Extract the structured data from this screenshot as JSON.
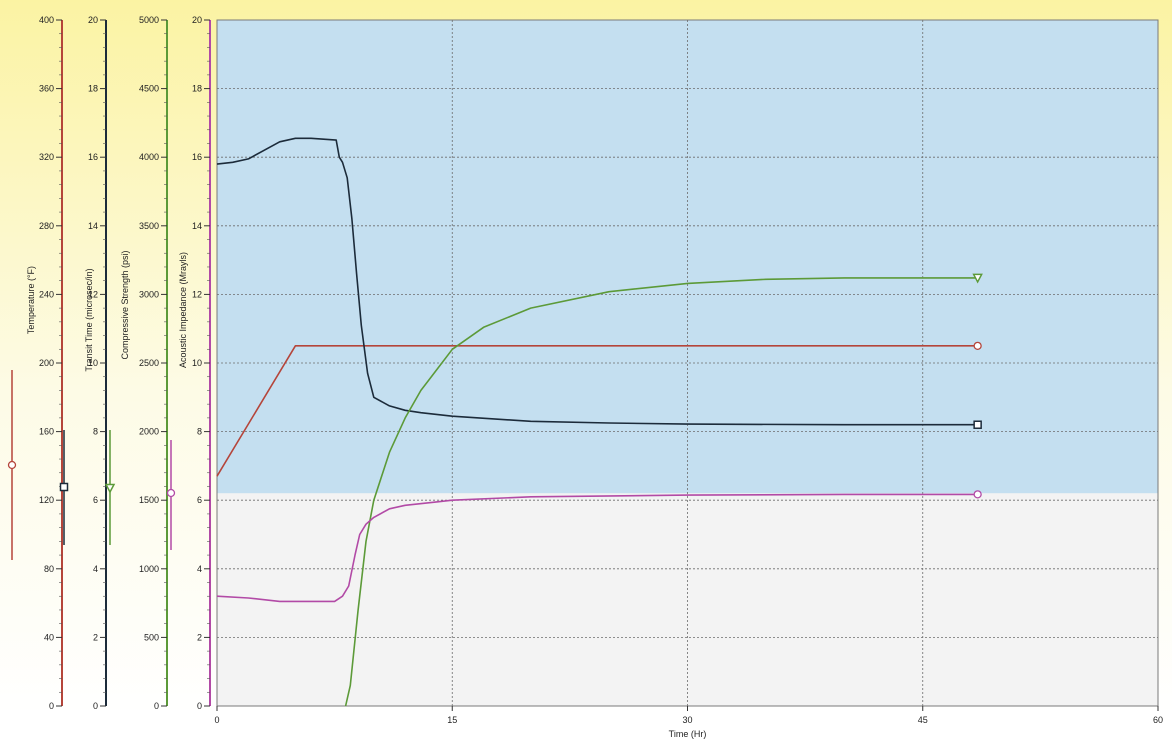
{
  "colors": {
    "background_top": "#fbf3a3",
    "plot_upper": "#c4dff0",
    "plot_lower": "#f3f3f3",
    "gridline": "#6c6c6c",
    "temperature": "#b5453a",
    "transit_time": "#1c2b3a",
    "compressive_strength": "#5c9a38",
    "acoustic_impedance": "#b24aa6"
  },
  "chart_data": {
    "type": "line",
    "title": "",
    "xlabel": "Time (Hr)",
    "xlim": [
      0,
      60
    ],
    "x_ticks": [
      "0",
      "15",
      "30",
      "45",
      "60"
    ],
    "grid": true,
    "y_axes": [
      {
        "id": "temperature",
        "label": "Temperature (°F)",
        "ylim": [
          0,
          400
        ],
        "ticks": [
          "0",
          "40",
          "80",
          "120",
          "160",
          "200",
          "240",
          "280",
          "320",
          "360",
          "400"
        ],
        "color": "#b5453a",
        "marker": "circle"
      },
      {
        "id": "transit_time",
        "label": "Transit Time (microsec/in)",
        "ylim": [
          0,
          20
        ],
        "ticks": [
          "0",
          "2",
          "4",
          "6",
          "8",
          "10",
          "12",
          "14",
          "16",
          "18",
          "20"
        ],
        "color": "#1c2b3a",
        "marker": "square"
      },
      {
        "id": "compressive_strength",
        "label": "Compressive Strength (psi)",
        "ylim": [
          0,
          5000
        ],
        "ticks": [
          "0",
          "500",
          "1000",
          "1500",
          "2000",
          "2500",
          "3000",
          "3500",
          "4000",
          "4500",
          "5000"
        ],
        "color": "#5c9a38",
        "marker": "triangle"
      },
      {
        "id": "acoustic_impedance",
        "label": "Acoustic Impedance (Mrayls)",
        "ylim": [
          0,
          20
        ],
        "ticks": [
          "0",
          "2",
          "4",
          "6",
          "8",
          "10",
          "12",
          "14",
          "16",
          "18",
          "20"
        ],
        "color": "#b24aa6",
        "marker": "circle"
      }
    ],
    "series": [
      {
        "axis": "temperature",
        "x": [
          0,
          5,
          10,
          15,
          20,
          30,
          40,
          48.5
        ],
        "y": [
          134,
          210,
          210,
          210,
          210,
          210,
          210,
          210
        ]
      },
      {
        "axis": "transit_time",
        "x": [
          0,
          1,
          2,
          3,
          4,
          5,
          6,
          7.6,
          7.8,
          8,
          8.3,
          8.6,
          8.9,
          9.2,
          9.6,
          10,
          11,
          12,
          13,
          15,
          20,
          25,
          30,
          40,
          48.5
        ],
        "y": [
          15.8,
          15.85,
          15.95,
          16.2,
          16.45,
          16.55,
          16.55,
          16.5,
          16,
          15.85,
          15.4,
          14.2,
          12.6,
          11.1,
          9.7,
          9.0,
          8.75,
          8.62,
          8.55,
          8.45,
          8.3,
          8.25,
          8.22,
          8.2,
          8.2
        ]
      },
      {
        "axis": "compressive_strength",
        "x": [
          8.2,
          8.5,
          9,
          9.5,
          10,
          11,
          12,
          13,
          14,
          15,
          17,
          20,
          25,
          30,
          35,
          40,
          48.5
        ],
        "y": [
          0,
          150,
          700,
          1200,
          1500,
          1850,
          2100,
          2300,
          2450,
          2600,
          2760,
          2900,
          3020,
          3080,
          3110,
          3120,
          3120
        ]
      },
      {
        "axis": "acoustic_impedance",
        "x": [
          0,
          2,
          4,
          6,
          7.5,
          8,
          8.4,
          8.8,
          9.1,
          9.5,
          10,
          11,
          12,
          14,
          15,
          20,
          30,
          40,
          48.5
        ],
        "y": [
          3.2,
          3.15,
          3.05,
          3.05,
          3.05,
          3.2,
          3.5,
          4.4,
          5.0,
          5.3,
          5.5,
          5.75,
          5.85,
          5.95,
          6.0,
          6.1,
          6.15,
          6.17,
          6.17
        ]
      }
    ]
  }
}
